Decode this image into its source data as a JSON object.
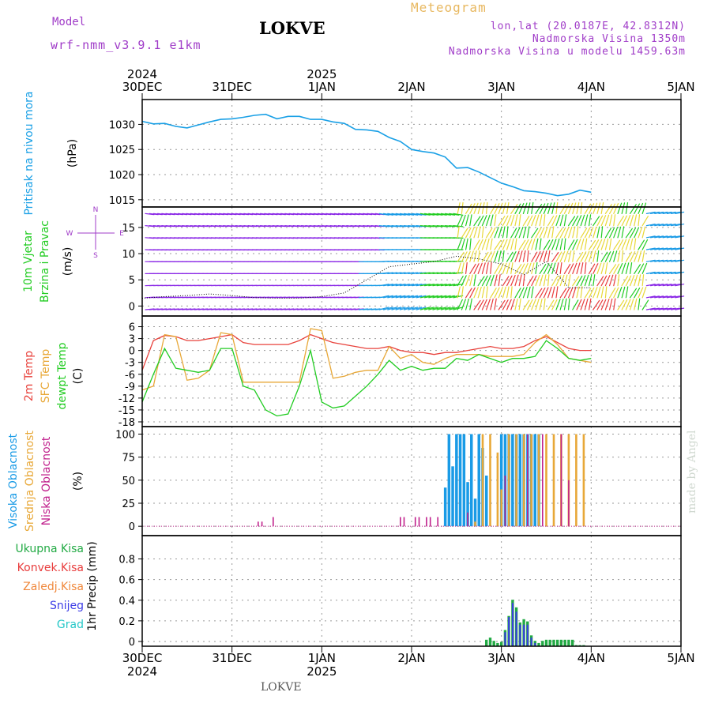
{
  "header": {
    "model_label": "Model",
    "model_name": "wrf-nmm_v3.9.1 e1km",
    "station": "LOKVE",
    "product": "Meteogram",
    "coords": "lon,lat (20.0187E, 42.8312N)",
    "elevation": "Nadmorska Visina 1350m",
    "model_elevation": "Nadmorska Visina u modelu 1459.63m",
    "footer_station": "LOKVE",
    "watermark": "made by Angel"
  },
  "colors": {
    "pressure": "#1aa0e6",
    "temp2m": "#e8423c",
    "sfc": "#e8a838",
    "dew": "#22cc22",
    "high_cloud": "#1a9be6",
    "mid_cloud": "#e8a838",
    "low_cloud": "#c0208c",
    "precip_total": "#22aa44",
    "precip_conv": "#e83c3c",
    "precip_frz": "#f0883c",
    "precip_snow": "#3c3ce6",
    "precip_hail": "#28c8c8",
    "wind_purple": "#8a28e6",
    "wind_blue": "#1a9be6",
    "wind_green": "#22cc22",
    "wind_yellow": "#e8d838",
    "wind_red": "#e83c3c",
    "wind_dir_label": "#a03cc8"
  },
  "chart_data": [
    {
      "type": "line",
      "panel": "pressure",
      "ylabel_lines": [
        "Pritisak na nivou mora",
        "(hPa)"
      ],
      "yticks": [
        1015,
        1020,
        1025,
        1030
      ],
      "ylim": [
        1014.5,
        1034
      ],
      "x_hours": [
        0,
        3,
        6,
        9,
        12,
        15,
        18,
        21,
        24,
        27,
        30,
        33,
        36,
        39,
        42,
        45,
        48,
        51,
        54,
        57,
        60,
        63,
        66,
        69,
        72,
        75,
        78,
        81,
        84,
        87,
        90,
        93,
        96,
        99,
        102,
        105,
        108,
        111,
        114,
        117,
        120
      ],
      "series": [
        {
          "name": "Pritisak na nivou mora",
          "values": [
            1030.6,
            1030.1,
            1030.2,
            1029.6,
            1029.3,
            1029.9,
            1030.5,
            1031.0,
            1031.1,
            1031.4,
            1031.8,
            1032.0,
            1031.1,
            1031.6,
            1031.6,
            1031.0,
            1031.0,
            1030.5,
            1030.2,
            1029.0,
            1028.9,
            1028.6,
            1027.4,
            1026.6,
            1025.0,
            1024.6,
            1024.3,
            1023.5,
            1021.3,
            1021.4,
            1020.5,
            1019.4,
            1018.3,
            1017.6,
            1016.8,
            1016.6,
            1016.3,
            1015.8,
            1016.1,
            1016.9,
            1016.5
          ]
        }
      ],
      "grid": true
    },
    {
      "type": "line",
      "panel": "wind",
      "ylabel_lines": [
        "10m Vjetar",
        "Brzina i Pravac",
        "(m/s)"
      ],
      "direction_legend": [
        "N",
        "W",
        "E",
        "S"
      ],
      "yticks": [
        0,
        5,
        10,
        15
      ],
      "ylim": [
        -1,
        18
      ],
      "x_hours": [
        0,
        6,
        12,
        18,
        24,
        30,
        36,
        42,
        48,
        54,
        60,
        66,
        72,
        78,
        84,
        90,
        96,
        102,
        108,
        114,
        120
      ],
      "series": [
        {
          "name": "speed",
          "values": [
            1.5,
            1.8,
            2.0,
            2.3,
            2.0,
            1.6,
            1.5,
            1.5,
            1.8,
            2.5,
            5.0,
            7.5,
            8.0,
            8.5,
            9.5,
            9.0,
            8.0,
            6.0,
            8.5,
            3.5,
            3.5
          ]
        }
      ],
      "grid": true
    },
    {
      "type": "line",
      "panel": "temperature",
      "ylabel_lines": [
        "2m Temp",
        "SFC Temp",
        "dewpt Temp",
        "(C)"
      ],
      "yticks": [
        -18,
        -15,
        -12,
        -9,
        -6,
        -3,
        0,
        3,
        6
      ],
      "ylim": [
        -18,
        7.5
      ],
      "x_hours": [
        0,
        3,
        6,
        9,
        12,
        15,
        18,
        21,
        24,
        27,
        30,
        33,
        36,
        39,
        42,
        45,
        48,
        51,
        54,
        57,
        60,
        63,
        66,
        69,
        72,
        75,
        78,
        81,
        84,
        87,
        90,
        93,
        96,
        99,
        102,
        105,
        108,
        111,
        114,
        117,
        120
      ],
      "series": [
        {
          "name": "2m Temp",
          "values": [
            -5.0,
            2.5,
            3.8,
            3.5,
            2.5,
            2.5,
            3.0,
            3.5,
            4.0,
            2.0,
            1.5,
            1.5,
            1.5,
            1.5,
            2.5,
            4.0,
            3.0,
            2.0,
            1.5,
            1.0,
            0.5,
            0.5,
            1.0,
            0.0,
            -0.5,
            -0.5,
            -1.0,
            -0.5,
            -0.5,
            0.0,
            0.5,
            1.0,
            0.5,
            0.5,
            1.0,
            2.5,
            3.5,
            2.0,
            0.5,
            0.0,
            0.0
          ]
        },
        {
          "name": "SFC Temp",
          "values": [
            -10.0,
            -9.0,
            4.0,
            3.5,
            -7.5,
            -7.0,
            -5.0,
            4.5,
            4.0,
            -8.0,
            -8.0,
            -8.0,
            -8.0,
            -8.0,
            -8.0,
            5.5,
            5.0,
            -7.0,
            -6.5,
            -5.5,
            -5.0,
            -5.0,
            1.0,
            -2.0,
            -1.0,
            -3.0,
            -3.5,
            -2.0,
            -1.0,
            -1.0,
            -1.0,
            -1.5,
            -1.5,
            -1.5,
            -1.0,
            2.0,
            4.0,
            1.5,
            -2.0,
            -2.5,
            -3.0
          ]
        },
        {
          "name": "dewpt Temp",
          "values": [
            -13.0,
            -6.0,
            0.5,
            -4.5,
            -5.0,
            -5.5,
            -5.0,
            0.5,
            0.5,
            -9.0,
            -10.0,
            -15.0,
            -16.5,
            -16.0,
            -9.0,
            0.0,
            -13.0,
            -14.5,
            -14.0,
            -11.5,
            -9.0,
            -6.0,
            -2.5,
            -5.0,
            -4.0,
            -5.0,
            -4.5,
            -4.5,
            -2.0,
            -2.5,
            -1.0,
            -2.0,
            -3.0,
            -2.0,
            -2.0,
            -1.5,
            2.5,
            0.5,
            -2.0,
            -2.5,
            -2.0
          ]
        }
      ],
      "grid": true
    },
    {
      "type": "bar",
      "panel": "cloud",
      "ylabel_lines": [
        "Visoka Oblacnost",
        "Srednja Oblacnost",
        "Niska Oblacnost",
        "(%)"
      ],
      "yticks": [
        0,
        25,
        50,
        75,
        100
      ],
      "ylim": [
        -5,
        103
      ],
      "series": [
        {
          "name": "Visoka Oblacnost",
          "x": [
            81,
            82,
            83,
            84,
            85,
            86,
            87,
            88,
            89,
            90,
            91,
            92,
            96,
            97,
            98,
            99,
            100,
            101,
            102,
            103,
            104,
            105,
            106
          ],
          "values": [
            42,
            100,
            65,
            100,
            100,
            100,
            48,
            100,
            30,
            100,
            85,
            55,
            100,
            100,
            100,
            100,
            100,
            100,
            100,
            100,
            100,
            100,
            100
          ]
        },
        {
          "name": "Srednja Oblacnost",
          "x": [
            89,
            91,
            93,
            95,
            96,
            98,
            100,
            102,
            104,
            106,
            108,
            110,
            112,
            114,
            116,
            118
          ],
          "values": [
            5,
            100,
            100,
            80,
            40,
            100,
            100,
            100,
            100,
            100,
            100,
            100,
            100,
            100,
            100,
            100
          ]
        },
        {
          "name": "Niska Oblacnost",
          "x": [
            31,
            32,
            35,
            69,
            70,
            73,
            74,
            76,
            77,
            79,
            87,
            97,
            103,
            107,
            112,
            114
          ],
          "values": [
            5,
            5,
            10,
            10,
            10,
            10,
            10,
            10,
            10,
            10,
            15,
            55,
            100,
            100,
            100,
            50
          ]
        }
      ],
      "grid": true
    },
    {
      "type": "bar",
      "panel": "precip",
      "ylabel_lines": [
        "1hr Precip (mm)"
      ],
      "legend": [
        "Ukupna Kisa",
        "Konvek.Kisa",
        "Zaledj.Kisa",
        "Snijeg",
        "Grad"
      ],
      "yticks": [
        0,
        0.2,
        0.4,
        0.6,
        0.8
      ],
      "ylim": [
        0,
        0.98
      ],
      "series": [
        {
          "name": "Ukupna Kisa",
          "x": [
            92,
            93,
            94,
            95,
            96,
            97,
            98,
            99,
            100,
            101,
            102,
            103,
            104,
            105,
            106,
            107,
            108,
            109,
            110,
            111,
            112,
            113,
            114,
            115,
            116,
            117,
            118
          ],
          "values": [
            0.06,
            0.08,
            0.05,
            0.03,
            0.04,
            0.15,
            0.28,
            0.43,
            0.36,
            0.22,
            0.25,
            0.23,
            0.1,
            0.05,
            0.03,
            0.05,
            0.06,
            0.06,
            0.06,
            0.06,
            0.06,
            0.06,
            0.06,
            0.06,
            0.01,
            0.01,
            0.01
          ]
        },
        {
          "name": "Snijeg",
          "x": [
            97,
            98,
            99,
            100,
            101,
            102,
            103,
            104,
            105
          ],
          "values": [
            0.13,
            0.27,
            0.4,
            0.32,
            0.2,
            0.2,
            0.2,
            0.08,
            0.03
          ]
        }
      ],
      "grid": true
    }
  ],
  "x_axis": {
    "top_years": [
      {
        "label": "2024",
        "hour": 0
      },
      {
        "label": "2025",
        "hour": 48
      }
    ],
    "bottom_years": [
      {
        "label": "2024",
        "hour": 0
      },
      {
        "label": "2025",
        "hour": 48
      }
    ],
    "ticks": [
      {
        "label": "30DEC",
        "hour": 0
      },
      {
        "label": "31DEC",
        "hour": 24
      },
      {
        "label": "1JAN",
        "hour": 48
      },
      {
        "label": "2JAN",
        "hour": 72
      },
      {
        "label": "3JAN",
        "hour": 96
      },
      {
        "label": "4JAN",
        "hour": 120
      },
      {
        "label": "5JAN",
        "hour": 144
      }
    ],
    "range_hours": [
      0,
      144
    ]
  }
}
